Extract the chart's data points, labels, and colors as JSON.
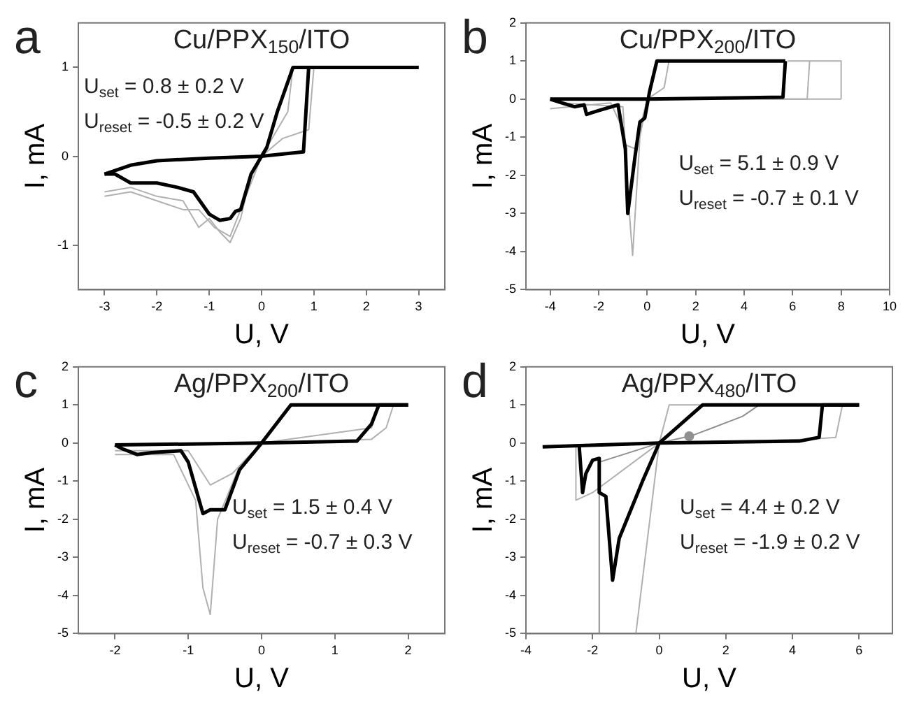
{
  "chart_data": [
    {
      "type": "line",
      "title": "Cu/PPX$_{150}$/ITO",
      "xlabel": "U, V",
      "ylabel": "I, mA",
      "annotations": [
        "a",
        "U$_{set}$ = 0.8 ± 0.2 V",
        "U$_{reset}$ = -0.5 ± 0.2 V"
      ],
      "xlim": [
        -3.5,
        3.5
      ],
      "xticks": [
        -3,
        -2,
        -1,
        0,
        1,
        2,
        3
      ],
      "ylim": [
        -1.5,
        1.5
      ],
      "yticks": [
        -1,
        0,
        1
      ],
      "grid": false,
      "legend": false,
      "marker": "none",
      "line_style": "solid",
      "series": [
        {
          "color": "#000000",
          "x": [
            -3,
            -2.5,
            -2,
            -1,
            0,
            0.8,
            0.9,
            3
          ],
          "values": [
            -0.2,
            -0.1,
            -0.05,
            -0.02,
            0,
            0.05,
            1,
            1
          ]
        },
        {
          "color": "#000000",
          "x": [
            3,
            0.6,
            0.3,
            0.1,
            0,
            -0.2,
            -0.4,
            -0.5,
            -0.6,
            -0.8,
            -1,
            -1.3,
            -1.6,
            -2,
            -2.5,
            -2.8,
            -3
          ],
          "values": [
            1,
            1,
            0.5,
            0.1,
            0,
            -0.2,
            -0.6,
            -0.62,
            -0.7,
            -0.72,
            -0.65,
            -0.4,
            -0.35,
            -0.3,
            -0.3,
            -0.2,
            -0.2
          ]
        },
        {
          "color": "#b0b0b0",
          "x": [
            -3,
            -2.5,
            -2,
            -1.5,
            -1.2,
            -1,
            -0.8,
            -0.6,
            -0.4,
            -0.2,
            0,
            0.4,
            0.9,
            1
          ],
          "values": [
            -0.4,
            -0.35,
            -0.45,
            -0.5,
            -0.8,
            -0.7,
            -0.85,
            -0.97,
            -0.7,
            -0.2,
            0,
            0.2,
            0.3,
            1
          ]
        },
        {
          "color": "#b0b0b0",
          "x": [
            -3,
            -2.5,
            -2,
            -1.5,
            -1.2,
            -0.9,
            -0.6,
            -0.4,
            0,
            0.5,
            0.6
          ],
          "values": [
            -0.45,
            -0.4,
            -0.5,
            -0.6,
            -0.6,
            -0.8,
            -0.9,
            -0.6,
            0,
            0.5,
            1
          ]
        }
      ]
    },
    {
      "type": "line",
      "title": "Cu/PPX$_{200}$/ITO",
      "xlabel": "U, V",
      "ylabel": "I, mA",
      "annotations": [
        "b",
        "U$_{set}$ = 5.1 ± 0.9 V",
        "U$_{reset}$ = -0.7 ± 0.1 V"
      ],
      "xlim": [
        -5,
        10
      ],
      "xticks": [
        -4,
        -2,
        0,
        2,
        4,
        6,
        8,
        10
      ],
      "ylim": [
        -5,
        2
      ],
      "yticks": [
        -5,
        -4,
        -3,
        -2,
        -1,
        0,
        1,
        2
      ],
      "grid": false,
      "legend": false,
      "marker": "none",
      "line_style": "solid",
      "series": [
        {
          "color": "#000000",
          "x": [
            -4,
            0,
            5.6,
            5.7
          ],
          "values": [
            0,
            0,
            0.05,
            1
          ]
        },
        {
          "color": "#000000",
          "x": [
            5.7,
            0.4,
            0.1,
            -0.1,
            -0.3,
            -0.5,
            -0.8,
            -0.9,
            -1.2,
            -2,
            -2.5,
            -2.6,
            -3,
            -3.5,
            -4
          ],
          "values": [
            1,
            1,
            0.2,
            -0.5,
            -0.6,
            -1.5,
            -3,
            -1.3,
            -0.15,
            -0.3,
            -0.4,
            -0.15,
            -0.2,
            -0.1,
            0
          ]
        },
        {
          "color": "#b0b0b0",
          "x": [
            -4,
            -1.5,
            -1,
            -0.6,
            -0.3,
            0,
            8
          ],
          "values": [
            -0.25,
            -0.1,
            -0.8,
            -4.1,
            -1,
            0,
            0
          ]
        },
        {
          "color": "#b0b0b0",
          "x": [
            8,
            8,
            5.8
          ],
          "values": [
            0,
            1,
            1
          ]
        },
        {
          "color": "#b0b0b0",
          "x": [
            0.9,
            0.7,
            0
          ],
          "values": [
            1,
            0.3,
            0
          ]
        },
        {
          "color": "#b0b0b0",
          "x": [
            -3.5,
            -1,
            -0.9,
            -0.5,
            0,
            6.6,
            6.7
          ],
          "values": [
            -0.1,
            -0.2,
            -1.2,
            -1.3,
            0,
            0,
            1
          ]
        }
      ]
    },
    {
      "type": "line",
      "title": "Ag/PPX$_{200}$/ITO",
      "xlabel": "U, V",
      "ylabel": "I, mA",
      "annotations": [
        "c",
        "U$_{set}$ = 1.5 ± 0.4 V",
        "U$_{reset}$ = -0.7 ± 0.3 V"
      ],
      "xlim": [
        -2.5,
        2.5
      ],
      "xticks": [
        -2,
        -1,
        0,
        1,
        2
      ],
      "ylim": [
        -5,
        2
      ],
      "yticks": [
        -5,
        -4,
        -3,
        -2,
        -1,
        0,
        1,
        2
      ],
      "grid": false,
      "legend": false,
      "marker": "none",
      "line_style": "solid",
      "series": [
        {
          "color": "#000000",
          "x": [
            -2,
            0,
            1.3,
            1.5,
            1.6,
            2
          ],
          "values": [
            -0.05,
            0,
            0.05,
            0.5,
            1,
            1
          ]
        },
        {
          "color": "#000000",
          "x": [
            2,
            0.4,
            0.2,
            0,
            -0.3,
            -0.5,
            -0.7,
            -0.8,
            -1,
            -1.1,
            -1.5,
            -1.7,
            -1.9,
            -2
          ],
          "values": [
            1,
            1,
            0.5,
            0,
            -0.7,
            -1.75,
            -1.75,
            -1.85,
            -0.5,
            -0.2,
            -0.25,
            -0.3,
            -0.15,
            -0.05
          ]
        },
        {
          "color": "#b0b0b0",
          "x": [
            -2,
            -1.2,
            -0.9,
            -0.8,
            -0.7,
            -0.6,
            -0.3,
            0,
            1.5,
            1.7,
            1.8
          ],
          "values": [
            -0.3,
            -0.3,
            -1.5,
            -3.8,
            -4.5,
            -2,
            -0.6,
            0,
            0.1,
            0.4,
            1
          ]
        },
        {
          "color": "#b0b0b0",
          "x": [
            -2,
            -1,
            -0.7,
            -0.4,
            0,
            1.5,
            1.6
          ],
          "values": [
            -0.2,
            -0.2,
            -1.1,
            -0.8,
            0,
            0.4,
            1
          ]
        }
      ]
    },
    {
      "type": "line",
      "title": "Ag/PPX$_{480}$/ITO",
      "xlabel": "U, V",
      "ylabel": "I, mA",
      "annotations": [
        "d",
        "U$_{set}$ = 4.4 ± 0.2 V",
        "U$_{reset}$ = -1.9 ± 0.2 V"
      ],
      "xlim": [
        -4,
        7
      ],
      "xticks": [
        -4,
        -2,
        0,
        2,
        4,
        6
      ],
      "ylim": [
        -5,
        2
      ],
      "yticks": [
        -5,
        -4,
        -3,
        -2,
        -1,
        0,
        1,
        2
      ],
      "grid": false,
      "legend": false,
      "marker": "none",
      "line_style": "solid",
      "series": [
        {
          "color": "#000000",
          "x": [
            -3.5,
            0,
            4.2,
            4.8,
            4.9,
            6
          ],
          "values": [
            -0.1,
            0,
            0.05,
            0.15,
            1,
            1
          ]
        },
        {
          "color": "#000000",
          "x": [
            6,
            1.3,
            0,
            -0.5,
            -1.2,
            -1.4,
            -1.6,
            -1.8,
            -1.8,
            -2,
            -2.2,
            -2.3,
            -2.4
          ],
          "values": [
            1,
            1,
            0,
            -1,
            -2.5,
            -3.6,
            -1.4,
            -1.3,
            -0.4,
            -0.45,
            -0.8,
            -1.3,
            -0.1
          ]
        },
        {
          "color": "#b0b0b0",
          "x": [
            -2.5,
            -2.5,
            -2,
            0,
            0.3,
            5.5
          ],
          "values": [
            -0.1,
            -1.5,
            -1.3,
            0,
            1,
            1
          ]
        },
        {
          "color": "#b0b0b0",
          "x": [
            5.5,
            5.3,
            4.5,
            0,
            -0.7
          ],
          "values": [
            1,
            0.15,
            0.1,
            0,
            -5
          ]
        },
        {
          "color": "#909090",
          "x": [
            -1.8,
            -1.8,
            0,
            1,
            2.5,
            3
          ],
          "values": [
            -5,
            -0.5,
            0,
            0.2,
            0.7,
            1
          ]
        },
        {
          "type": "scatter",
          "marker": "circle",
          "color": "#909090",
          "x": [
            0.9
          ],
          "values": [
            0.18
          ]
        }
      ]
    }
  ]
}
